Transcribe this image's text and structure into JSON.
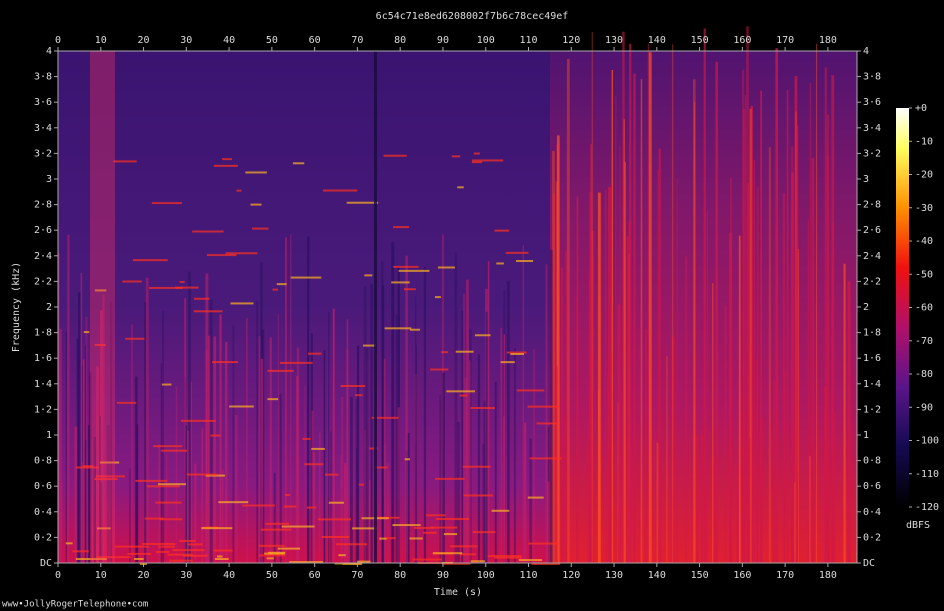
{
  "chart_data": {
    "type": "spectrogram",
    "title": "6c54c71e8ed6208002f7b6c78cec49ef",
    "x_label": "Time (s)",
    "y_label": "Frequency (kHz)",
    "xlim": [
      0,
      186.8
    ],
    "xticks": [
      0,
      10,
      20,
      30,
      40,
      50,
      60,
      70,
      80,
      90,
      100,
      110,
      120,
      130,
      140,
      150,
      160,
      170,
      180
    ],
    "ylim": [
      0,
      4
    ],
    "yticks": [
      {
        "value": 0,
        "label": "DC"
      },
      {
        "value": 0.2,
        "label": "0·2"
      },
      {
        "value": 0.4,
        "label": "0·4"
      },
      {
        "value": 0.6,
        "label": "0·6"
      },
      {
        "value": 0.8,
        "label": "0·8"
      },
      1,
      {
        "value": 1.2,
        "label": "1·2"
      },
      {
        "value": 1.4,
        "label": "1·4"
      },
      {
        "value": 1.6,
        "label": "1·6"
      },
      {
        "value": 1.8,
        "label": "1·8"
      },
      2,
      {
        "value": 2.2,
        "label": "2·2"
      },
      {
        "value": 2.4,
        "label": "2·4"
      },
      {
        "value": 2.6,
        "label": "2·6"
      },
      {
        "value": 2.8,
        "label": "2·8"
      },
      3,
      {
        "value": 3.2,
        "label": "3·2"
      },
      {
        "value": 3.4,
        "label": "3·4"
      },
      {
        "value": 3.6,
        "label": "3·6"
      },
      {
        "value": 3.8,
        "label": "3·8"
      },
      4
    ],
    "colorbar": {
      "label": "dBFS",
      "lim": [
        -120,
        0
      ],
      "ticks": [
        {
          "value": 0,
          "label": "+0"
        },
        -10,
        -20,
        -30,
        -40,
        -50,
        -60,
        -70,
        -80,
        -90,
        -100,
        -110,
        -120
      ]
    },
    "footer": "www•JollyRogerTelephone•com"
  }
}
